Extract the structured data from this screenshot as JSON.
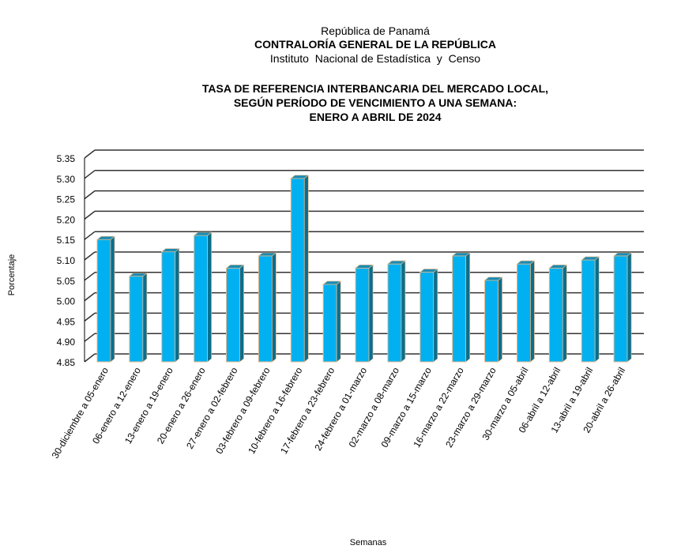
{
  "header": {
    "country": "República de Panamá",
    "institution": "CONTRALORÍA GENERAL DE LA REPÚBLICA",
    "institute": "Instituto  Nacional de Estadística  y  Censo"
  },
  "chart_data": {
    "type": "bar",
    "title": [
      "TASA DE REFERENCIA INTERBANCARIA DEL MERCADO LOCAL,",
      "SEGÚN PERÍODO DE VENCIMIENTO A UNA SEMANA:",
      "ENERO A ABRIL DE 2024"
    ],
    "xlabel": "Semanas",
    "ylabel": "Porcentaje",
    "ylim": [
      4.85,
      5.35
    ],
    "yticks": [
      "4.85",
      "4.90",
      "4.95",
      "5.00",
      "5.05",
      "5.10",
      "5.15",
      "5.20",
      "5.25",
      "5.30",
      "5.35"
    ],
    "grid": true,
    "categories": [
      "30-diciembre a 05-enero",
      "06-enero a 12-enero",
      "13-enero a 19-enero",
      "20-enero a 26-enero",
      "27-enero a 02-febrero",
      "03-febrero a 09-febrero",
      "10-febrero a 16-febrero",
      "17-febrero a 23-febrero",
      "24-febrero a 01-marzo",
      "02-marzo a 08-marzo",
      "09-marzo a 15-marzo",
      "16-marzo a 22-marzo",
      "23-marzo a 29-marzo",
      "30-marzo a 05-abril",
      "06-abril a 12-abril",
      "13-abril a 19-abril",
      "20-abril a 26-abril"
    ],
    "values": [
      5.15,
      5.06,
      5.12,
      5.16,
      5.08,
      5.11,
      5.3,
      5.04,
      5.08,
      5.09,
      5.07,
      5.11,
      5.05,
      5.09,
      5.08,
      5.1,
      5.11
    ],
    "colors": {
      "bar_front": "#00b0f0",
      "bar_side": "#0a6e8c",
      "bar_top": "#1a8cb4",
      "bar_edge": "#e6b98c",
      "grid": "#333333"
    }
  }
}
